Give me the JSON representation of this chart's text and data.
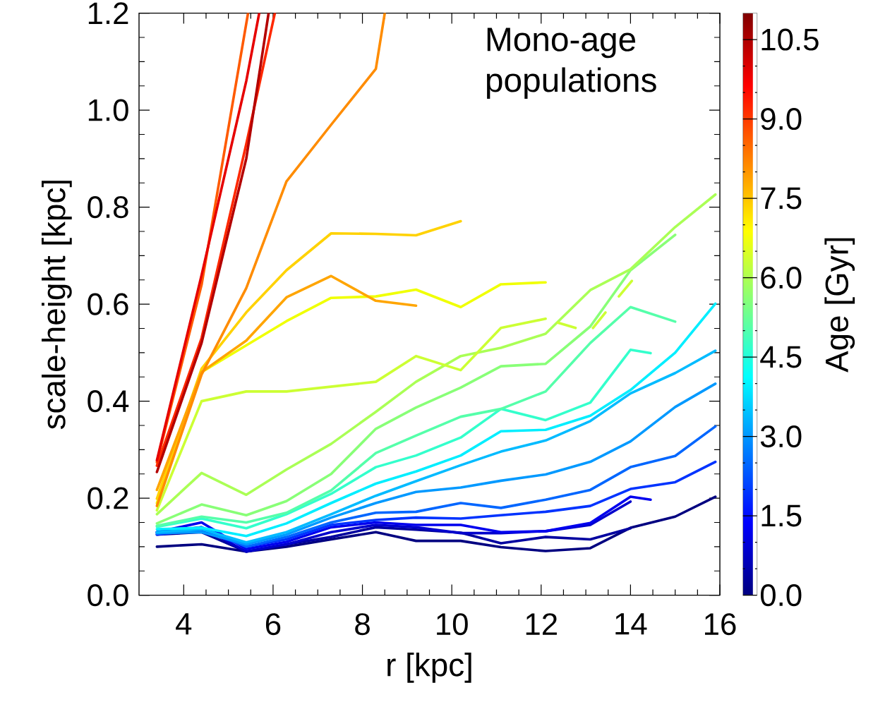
{
  "chart_data": {
    "type": "line",
    "xlabel": "r [kpc]",
    "ylabel": "scale-height [kpc]",
    "clabel": "Age [Gyr]",
    "annotations": [
      "Mono-age populations"
    ],
    "xlim": [
      3,
      16
    ],
    "ylim": [
      0,
      1.2
    ],
    "xticks": [
      4,
      6,
      8,
      10,
      12,
      14,
      16
    ],
    "yticks": [
      {
        "value": 0,
        "label": "0.0"
      },
      0.2,
      0.4,
      0.6,
      0.8,
      {
        "value": 1,
        "label": "1.0"
      },
      1.2
    ],
    "clim": [
      0,
      11
    ],
    "cticks": [
      {
        "value": 0,
        "label": "0.0"
      },
      1.5,
      {
        "value": 3,
        "label": "3.0"
      },
      4.5,
      {
        "value": 6,
        "label": "6.0"
      },
      7.5,
      {
        "value": 9,
        "label": "9.0"
      },
      10.5
    ],
    "x": [
      3.4,
      4.4,
      5.4,
      6.3,
      7.3,
      8.3,
      9.2,
      10.2,
      11.1,
      12.1,
      13.1,
      14.0,
      15.0,
      15.9
    ],
    "series": [
      {
        "color": "#000080",
        "values": [
          0.1,
          0.105,
          0.09,
          0.1,
          0.115,
          0.13,
          0.112,
          0.112,
          0.099,
          0.091,
          0.097,
          0.139,
          0.162,
          0.203
        ]
      },
      {
        "color": "#0000a0",
        "values": [
          0.125,
          0.13,
          0.09,
          0.105,
          0.12,
          0.14,
          0.135,
          0.129,
          0.107,
          0.12,
          0.115,
          0.138,
          null,
          null
        ]
      },
      {
        "color": "#0000cc",
        "values": [
          0.13,
          0.14,
          0.09,
          0.105,
          0.13,
          0.145,
          0.14,
          0.128,
          0.128,
          0.132,
          0.145,
          0.193,
          null,
          null
        ]
      },
      {
        "color": "#0000ee",
        "x": [
          3.4,
          4.4,
          5.4,
          6.3,
          7.3,
          8.3,
          9.2,
          10.2,
          11.1,
          12.1,
          13.1,
          14.0,
          14.45
        ],
        "values": [
          0.13,
          0.15,
          0.095,
          0.11,
          0.14,
          0.15,
          0.145,
          0.145,
          0.13,
          0.132,
          0.149,
          0.203,
          0.197
        ]
      },
      {
        "color": "#0033ff",
        "values": [
          0.125,
          0.135,
          0.1,
          0.115,
          0.145,
          0.155,
          0.16,
          0.158,
          0.165,
          0.172,
          0.184,
          0.219,
          0.233,
          0.275
        ]
      },
      {
        "color": "#0066ff",
        "values": [
          0.127,
          0.14,
          0.1,
          0.12,
          0.15,
          0.17,
          0.172,
          0.19,
          0.18,
          0.197,
          0.217,
          0.264,
          0.287,
          0.348
        ]
      },
      {
        "color": "#0099ff",
        "values": [
          0.128,
          0.13,
          0.105,
          0.125,
          0.16,
          0.19,
          0.213,
          0.222,
          0.236,
          0.249,
          0.275,
          0.317,
          0.388,
          0.436
        ]
      },
      {
        "color": "#00bbff",
        "values": [
          0.13,
          0.136,
          0.109,
          0.13,
          0.167,
          0.205,
          0.235,
          0.268,
          0.296,
          0.319,
          0.359,
          0.416,
          0.458,
          0.504
        ]
      },
      {
        "color": "#00eeff",
        "values": [
          0.136,
          0.139,
          0.122,
          0.148,
          0.19,
          0.23,
          0.255,
          0.288,
          0.338,
          0.341,
          0.37,
          0.423,
          0.5,
          0.601
        ]
      },
      {
        "color": "#33ffcc",
        "x": [
          3.4,
          4.4,
          5.4,
          6.3,
          7.3,
          8.3,
          9.2,
          10.2,
          11.1,
          12.1,
          13.1,
          14.0,
          14.45
        ],
        "values": [
          0.141,
          0.158,
          0.138,
          0.167,
          0.209,
          0.264,
          0.288,
          0.325,
          0.384,
          0.361,
          0.397,
          0.506,
          0.499
        ]
      },
      {
        "color": "#55ffaa",
        "values": [
          0.143,
          0.162,
          0.15,
          0.17,
          0.216,
          0.293,
          0.329,
          0.368,
          0.384,
          0.42,
          0.52,
          0.594,
          0.564,
          null
        ]
      },
      {
        "color": "#88ff77",
        "values": [
          0.148,
          0.187,
          0.165,
          0.194,
          0.25,
          0.343,
          0.387,
          0.428,
          0.472,
          0.477,
          0.554,
          0.67,
          0.743,
          null
        ]
      },
      {
        "color": "#aaff55",
        "values": [
          0.167,
          0.252,
          0.207,
          0.259,
          0.312,
          0.378,
          0.44,
          0.493,
          0.51,
          0.539,
          0.629,
          0.672,
          0.759,
          0.826
        ]
      },
      {
        "color": "#ccff33",
        "x": [
          3.4,
          4.4,
          5.4,
          6.3,
          7.3,
          8.3,
          9.2,
          10.2,
          11.1,
          12.1,
          12.25,
          12.37,
          12.77,
          12.9,
          13.16,
          13.44,
          13.6,
          13.74,
          14.03
        ],
        "values": [
          0.175,
          0.4,
          0.42,
          0.42,
          0.43,
          0.44,
          0.493,
          0.464,
          0.551,
          0.57,
          null,
          0.562,
          0.551,
          null,
          0.551,
          0.583,
          null,
          0.616,
          0.648
        ]
      },
      {
        "color": "#f0ff00",
        "values": [
          0.19,
          0.46,
          0.515,
          0.565,
          0.613,
          0.616,
          0.63,
          0.594,
          0.641,
          0.645,
          null,
          null,
          null,
          null
        ]
      },
      {
        "color": "#ffd200",
        "values": [
          0.199,
          0.467,
          0.583,
          0.67,
          0.746,
          0.745,
          0.742,
          0.771,
          null,
          null,
          null,
          null,
          null,
          null
        ]
      },
      {
        "color": "#ffa500",
        "values": [
          0.217,
          0.46,
          0.525,
          0.614,
          0.658,
          0.607,
          0.597,
          null,
          null,
          null,
          null,
          null,
          null,
          null
        ]
      },
      {
        "color": "#ff8c00",
        "x": [
          3.4,
          4.4,
          5.4,
          6.3,
          7.3,
          8.3,
          8.5
        ],
        "values": [
          0.184,
          0.455,
          0.633,
          0.853,
          0.97,
          1.085,
          1.2
        ]
      },
      {
        "color": "#ff5a00",
        "x": [
          3.4,
          4.4,
          5.44
        ],
        "values": [
          0.274,
          0.64,
          1.2
        ]
      },
      {
        "color": "#ff2800",
        "x": [
          3.4,
          4.4,
          5.4,
          6.04
        ],
        "values": [
          0.267,
          0.53,
          0.93,
          1.2
        ]
      },
      {
        "color": "#e60000",
        "x": [
          3.4,
          4.4,
          5.4,
          5.69
        ],
        "values": [
          0.278,
          0.66,
          1.06,
          1.2
        ]
      },
      {
        "color": "#b40000",
        "x": [
          3.4,
          4.4,
          5.4,
          5.9
        ],
        "values": [
          0.254,
          0.52,
          0.9,
          1.2
        ]
      }
    ]
  }
}
